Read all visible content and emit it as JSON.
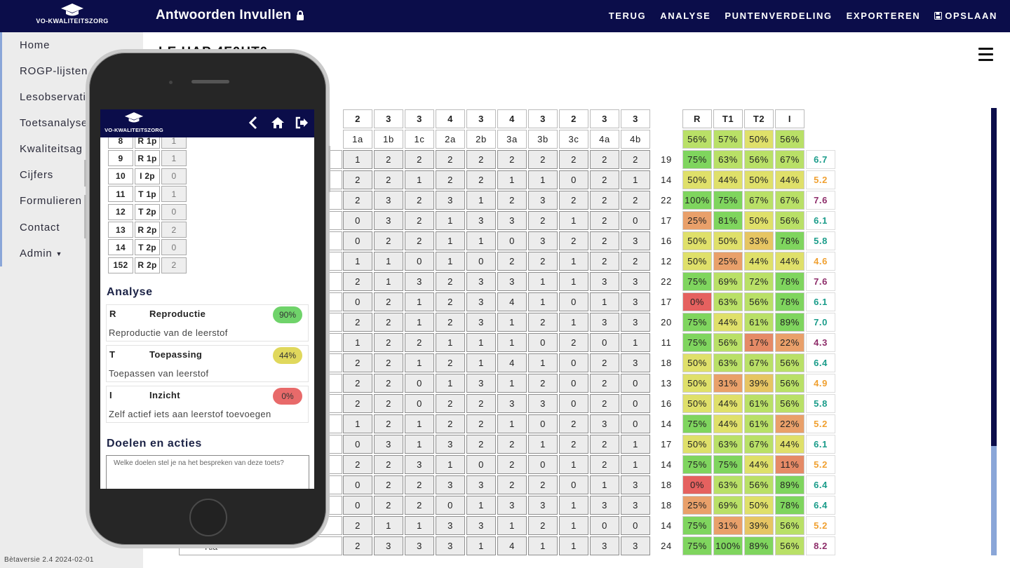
{
  "app": {
    "brand": "VO-KWALITEITSZORG",
    "title": "Antwoorden Invullen",
    "version": "Bètaversie 2.4 2024-02-01"
  },
  "topnav": {
    "terug": "TERUG",
    "analyse": "ANALYSE",
    "puntenverdeling": "PUNTENVERDELING",
    "exporteren": "EXPORTEREN",
    "opslaan": "OPSLAAN"
  },
  "sidebar": {
    "home": "Home",
    "rogp": "ROGP-lijsten",
    "lesobs": "Lesobservati",
    "toets": "Toetsanalyse",
    "kwal": "Kwaliteitsag",
    "cijfers": "Cijfers",
    "formulieren": "Formulieren",
    "contact": "Contact",
    "admin": "Admin"
  },
  "main": {
    "partial_heading": "LE HAP 4F0HT0..."
  },
  "grid": {
    "max_points": [
      "2",
      "3",
      "3",
      "4",
      "3",
      "4",
      "3",
      "2",
      "3",
      "3"
    ],
    "questions": [
      "1a",
      "1b",
      "1c",
      "2a",
      "2b",
      "3a",
      "3b",
      "3c",
      "4a",
      "4b"
    ],
    "category_headers": [
      "R",
      "T1",
      "T2",
      "I"
    ],
    "category_averages": [
      "56%",
      "57%",
      "50%",
      "56%"
    ],
    "partial_last_label": "Ttia",
    "rows": [
      {
        "scores": [
          "1",
          "2",
          "2",
          "2",
          "2",
          "2",
          "2",
          "2",
          "2",
          "2"
        ],
        "total": "19",
        "pct": [
          "75%",
          "63%",
          "56%",
          "67%"
        ],
        "grade": "6.7"
      },
      {
        "scores": [
          "2",
          "2",
          "1",
          "2",
          "2",
          "1",
          "1",
          "0",
          "2",
          "1"
        ],
        "total": "14",
        "pct": [
          "50%",
          "44%",
          "50%",
          "44%"
        ],
        "grade": "5.2"
      },
      {
        "scores": [
          "2",
          "3",
          "2",
          "3",
          "1",
          "2",
          "3",
          "2",
          "2",
          "2"
        ],
        "total": "22",
        "pct": [
          "100%",
          "75%",
          "67%",
          "67%"
        ],
        "grade": "7.6"
      },
      {
        "scores": [
          "0",
          "3",
          "2",
          "1",
          "3",
          "3",
          "2",
          "1",
          "2",
          "0"
        ],
        "total": "17",
        "pct": [
          "25%",
          "81%",
          "50%",
          "56%"
        ],
        "grade": "6.1"
      },
      {
        "scores": [
          "0",
          "2",
          "2",
          "1",
          "1",
          "0",
          "3",
          "2",
          "2",
          "3"
        ],
        "total": "16",
        "pct": [
          "50%",
          "50%",
          "33%",
          "78%"
        ],
        "grade": "5.8"
      },
      {
        "scores": [
          "1",
          "1",
          "0",
          "1",
          "0",
          "2",
          "2",
          "1",
          "2",
          "2"
        ],
        "total": "12",
        "pct": [
          "50%",
          "25%",
          "44%",
          "44%"
        ],
        "grade": "4.6"
      },
      {
        "scores": [
          "2",
          "1",
          "3",
          "2",
          "3",
          "3",
          "1",
          "1",
          "3",
          "3"
        ],
        "total": "22",
        "pct": [
          "75%",
          "69%",
          "72%",
          "78%"
        ],
        "grade": "7.6"
      },
      {
        "scores": [
          "0",
          "2",
          "1",
          "2",
          "3",
          "4",
          "1",
          "0",
          "1",
          "3"
        ],
        "total": "17",
        "pct": [
          "0%",
          "63%",
          "56%",
          "78%"
        ],
        "grade": "6.1"
      },
      {
        "scores": [
          "2",
          "2",
          "1",
          "2",
          "3",
          "1",
          "2",
          "1",
          "3",
          "3"
        ],
        "total": "20",
        "pct": [
          "75%",
          "44%",
          "61%",
          "89%"
        ],
        "grade": "7.0"
      },
      {
        "scores": [
          "1",
          "2",
          "2",
          "1",
          "1",
          "1",
          "0",
          "2",
          "0",
          "1"
        ],
        "total": "11",
        "pct": [
          "75%",
          "56%",
          "17%",
          "22%"
        ],
        "grade": "4.3"
      },
      {
        "scores": [
          "2",
          "2",
          "1",
          "2",
          "1",
          "4",
          "1",
          "0",
          "2",
          "3"
        ],
        "total": "18",
        "pct": [
          "50%",
          "63%",
          "67%",
          "56%"
        ],
        "grade": "6.4"
      },
      {
        "scores": [
          "2",
          "2",
          "0",
          "1",
          "3",
          "1",
          "2",
          "0",
          "2",
          "0"
        ],
        "total": "13",
        "pct": [
          "50%",
          "31%",
          "39%",
          "56%"
        ],
        "grade": "4.9"
      },
      {
        "scores": [
          "2",
          "2",
          "0",
          "2",
          "2",
          "3",
          "3",
          "0",
          "2",
          "0"
        ],
        "total": "16",
        "pct": [
          "50%",
          "44%",
          "61%",
          "56%"
        ],
        "grade": "5.8"
      },
      {
        "scores": [
          "1",
          "2",
          "1",
          "2",
          "2",
          "1",
          "0",
          "2",
          "3",
          "0"
        ],
        "total": "14",
        "pct": [
          "75%",
          "44%",
          "61%",
          "22%"
        ],
        "grade": "5.2"
      },
      {
        "scores": [
          "0",
          "3",
          "1",
          "3",
          "2",
          "2",
          "1",
          "2",
          "2",
          "1"
        ],
        "total": "17",
        "pct": [
          "50%",
          "63%",
          "67%",
          "44%"
        ],
        "grade": "6.1"
      },
      {
        "scores": [
          "2",
          "2",
          "3",
          "1",
          "0",
          "2",
          "0",
          "1",
          "2",
          "1"
        ],
        "total": "14",
        "pct": [
          "75%",
          "75%",
          "44%",
          "11%"
        ],
        "grade": "5.2"
      },
      {
        "scores": [
          "0",
          "2",
          "2",
          "3",
          "3",
          "2",
          "2",
          "0",
          "1",
          "3"
        ],
        "total": "18",
        "pct": [
          "0%",
          "63%",
          "56%",
          "89%"
        ],
        "grade": "6.4"
      },
      {
        "scores": [
          "0",
          "2",
          "2",
          "0",
          "1",
          "3",
          "3",
          "1",
          "3",
          "3"
        ],
        "total": "18",
        "pct": [
          "25%",
          "69%",
          "50%",
          "78%"
        ],
        "grade": "6.4"
      },
      {
        "scores": [
          "2",
          "1",
          "1",
          "3",
          "3",
          "1",
          "2",
          "1",
          "0",
          "0"
        ],
        "total": "14",
        "pct": [
          "75%",
          "31%",
          "39%",
          "56%"
        ],
        "grade": "5.2"
      },
      {
        "scores": [
          "2",
          "3",
          "3",
          "3",
          "1",
          "4",
          "1",
          "1",
          "3",
          "3"
        ],
        "total": "24",
        "pct": [
          "75%",
          "100%",
          "89%",
          "56%"
        ],
        "grade": "8.2"
      }
    ]
  },
  "mobile": {
    "brand": "VO-KWALITEITSZORG",
    "questions": [
      {
        "nr": "8",
        "type": "R 1p",
        "score": "1"
      },
      {
        "nr": "9",
        "type": "R 1p",
        "score": "1"
      },
      {
        "nr": "10",
        "type": "I 2p",
        "score": "0"
      },
      {
        "nr": "11",
        "type": "T 1p",
        "score": "1"
      },
      {
        "nr": "12",
        "type": "T 2p",
        "score": "0"
      },
      {
        "nr": "13",
        "type": "R 2p",
        "score": "2"
      },
      {
        "nr": "14",
        "type": "T 2p",
        "score": "0"
      },
      {
        "nr": "152",
        "type": "R 2p",
        "score": "2"
      }
    ],
    "analyse_title": "Analyse",
    "analyse": [
      {
        "code": "R",
        "name": "Reproductie",
        "pct": "90%",
        "desc": "Reproductie van de leerstof",
        "color": "#6fd36a"
      },
      {
        "code": "T",
        "name": "Toepassing",
        "pct": "44%",
        "desc": "Toepassen van leerstof",
        "color": "#e0d85c"
      },
      {
        "code": "I",
        "name": "Inzicht",
        "pct": "0%",
        "desc": "Zelf actief iets aan leerstof toevoegen",
        "color": "#e86a6a"
      }
    ],
    "doelen_title": "Doelen en acties",
    "doelen_placeholder": "Welke doelen stel je na het bespreken van deze toets?"
  },
  "colors": {
    "navy": "#0b0d4a",
    "grade_high": "#1a9c8a",
    "grade_mid": "#f0a030",
    "grade_low": "#8e2d6a"
  }
}
